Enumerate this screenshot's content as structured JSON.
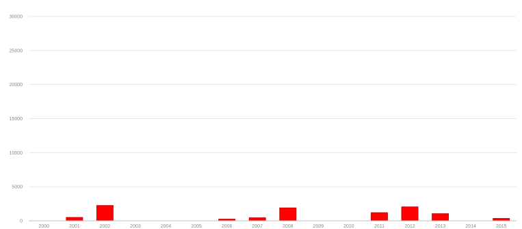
{
  "chart_data": {
    "type": "bar",
    "title": "",
    "xlabel": "",
    "ylabel": "",
    "categories": [
      "2000",
      "2001",
      "2002",
      "2003",
      "2004",
      "2005",
      "2006",
      "2007",
      "2008",
      "2009",
      "2010",
      "2011",
      "2012",
      "2013",
      "2014",
      "2015"
    ],
    "values": [
      0,
      500,
      2250,
      0,
      0,
      0,
      250,
      450,
      1900,
      0,
      0,
      1200,
      2050,
      1050,
      0,
      350
    ],
    "ylim": [
      0,
      30000
    ],
    "yticks": [
      "0",
      "5000",
      "10000",
      "15000",
      "20000",
      "25000",
      "30000"
    ],
    "grid": true,
    "legend": "none",
    "colors": {
      "bar": "#ff0000",
      "bar_edge": "#c00000",
      "grid": "#e6e6e6",
      "axis": "#bfbfbf",
      "tick_text": "#8a8a8a"
    }
  }
}
